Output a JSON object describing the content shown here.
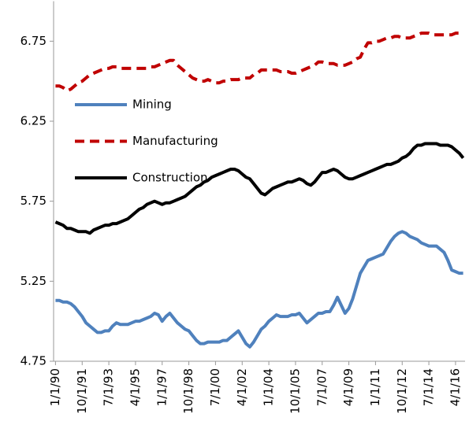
{
  "chart_data": {
    "type": "line",
    "categories": [
      "1/1/90",
      null,
      null,
      null,
      null,
      null,
      null,
      "10/1/91",
      null,
      null,
      null,
      null,
      null,
      null,
      "7/1/93",
      null,
      null,
      null,
      null,
      null,
      null,
      "4/1/95",
      null,
      null,
      null,
      null,
      null,
      null,
      "1/1/97",
      null,
      null,
      null,
      null,
      null,
      null,
      "10/1/98",
      null,
      null,
      null,
      null,
      null,
      null,
      "7/1/00",
      null,
      null,
      null,
      null,
      null,
      null,
      "4/1/02",
      null,
      null,
      null,
      null,
      null,
      null,
      "1/1/04",
      null,
      null,
      null,
      null,
      null,
      null,
      "10/1/05",
      null,
      null,
      null,
      null,
      null,
      null,
      "7/1/07",
      null,
      null,
      null,
      null,
      null,
      null,
      "4/1/09",
      null,
      null,
      null,
      null,
      null,
      null,
      "1/1/11",
      null,
      null,
      null,
      null,
      null,
      null,
      "10/1/12",
      null,
      null,
      null,
      null,
      null,
      null,
      "7/1/14",
      null,
      null,
      null,
      null,
      null,
      null,
      "4/1/16",
      null,
      null
    ],
    "series": [
      {
        "name": "Mining",
        "color": "#4f81bd",
        "dash": false,
        "values": [
          5.13,
          5.13,
          5.12,
          5.12,
          5.11,
          5.09,
          5.06,
          5.03,
          4.99,
          4.97,
          4.95,
          4.93,
          4.93,
          4.94,
          4.94,
          4.97,
          4.99,
          4.98,
          4.98,
          4.98,
          4.99,
          5.0,
          5.0,
          5.01,
          5.02,
          5.03,
          5.05,
          5.04,
          5.0,
          5.03,
          5.05,
          5.02,
          4.99,
          4.97,
          4.95,
          4.94,
          4.91,
          4.88,
          4.86,
          4.86,
          4.87,
          4.87,
          4.87,
          4.87,
          4.88,
          4.88,
          4.9,
          4.92,
          4.94,
          4.9,
          4.86,
          4.84,
          4.87,
          4.91,
          4.95,
          4.97,
          5.0,
          5.02,
          5.04,
          5.03,
          5.03,
          5.03,
          5.04,
          5.04,
          5.05,
          5.02,
          4.99,
          5.01,
          5.03,
          5.05,
          5.05,
          5.06,
          5.06,
          5.1,
          5.15,
          5.1,
          5.05,
          5.08,
          5.14,
          5.22,
          5.3,
          5.34,
          5.38,
          5.39,
          5.4,
          5.41,
          5.42,
          5.46,
          5.5,
          5.53,
          5.55,
          5.56,
          5.55,
          5.53,
          5.52,
          5.51,
          5.49,
          5.48,
          5.47,
          5.47,
          5.47,
          5.45,
          5.43,
          5.38,
          5.32,
          5.31,
          5.3,
          5.3
        ]
      },
      {
        "name": "Manufacturing",
        "color": "#c00000",
        "dash": true,
        "values": [
          6.47,
          6.47,
          6.46,
          6.44,
          6.45,
          6.47,
          6.49,
          6.5,
          6.52,
          6.54,
          6.55,
          6.56,
          6.57,
          6.58,
          6.58,
          6.59,
          6.59,
          6.58,
          6.58,
          6.58,
          6.58,
          6.58,
          6.58,
          6.58,
          6.58,
          6.59,
          6.59,
          6.6,
          6.61,
          6.62,
          6.63,
          6.63,
          6.6,
          6.58,
          6.56,
          6.54,
          6.52,
          6.51,
          6.5,
          6.5,
          6.51,
          6.5,
          6.49,
          6.49,
          6.5,
          6.5,
          6.51,
          6.51,
          6.51,
          6.52,
          6.52,
          6.52,
          6.54,
          6.55,
          6.57,
          6.57,
          6.57,
          6.57,
          6.57,
          6.56,
          6.56,
          6.56,
          6.55,
          6.55,
          6.56,
          6.57,
          6.58,
          6.59,
          6.6,
          6.62,
          6.62,
          6.61,
          6.61,
          6.61,
          6.6,
          6.6,
          6.6,
          6.61,
          6.62,
          6.64,
          6.65,
          6.7,
          6.74,
          6.74,
          6.75,
          6.75,
          6.76,
          6.77,
          6.77,
          6.78,
          6.78,
          6.77,
          6.77,
          6.77,
          6.78,
          6.79,
          6.8,
          6.8,
          6.8,
          6.79,
          6.79,
          6.79,
          6.79,
          6.79,
          6.79,
          6.8,
          6.8,
          6.81
        ]
      },
      {
        "name": "Construction",
        "color": "#000000",
        "dash": false,
        "values": [
          5.62,
          5.61,
          5.6,
          5.58,
          5.58,
          5.57,
          5.56,
          5.56,
          5.56,
          5.55,
          5.57,
          5.58,
          5.59,
          5.6,
          5.6,
          5.61,
          5.61,
          5.62,
          5.63,
          5.64,
          5.66,
          5.68,
          5.7,
          5.71,
          5.73,
          5.74,
          5.75,
          5.74,
          5.73,
          5.74,
          5.74,
          5.75,
          5.76,
          5.77,
          5.78,
          5.8,
          5.82,
          5.84,
          5.85,
          5.87,
          5.88,
          5.9,
          5.91,
          5.92,
          5.93,
          5.94,
          5.95,
          5.95,
          5.94,
          5.92,
          5.9,
          5.89,
          5.86,
          5.83,
          5.8,
          5.79,
          5.81,
          5.83,
          5.84,
          5.85,
          5.86,
          5.87,
          5.87,
          5.88,
          5.89,
          5.88,
          5.86,
          5.85,
          5.87,
          5.9,
          5.93,
          5.93,
          5.94,
          5.95,
          5.94,
          5.92,
          5.9,
          5.89,
          5.89,
          5.9,
          5.91,
          5.92,
          5.93,
          5.94,
          5.95,
          5.96,
          5.97,
          5.98,
          5.98,
          5.99,
          6.0,
          6.02,
          6.03,
          6.05,
          6.08,
          6.1,
          6.1,
          6.11,
          6.11,
          6.11,
          6.11,
          6.1,
          6.1,
          6.1,
          6.09,
          6.07,
          6.05,
          6.02
        ]
      }
    ],
    "ylim": [
      4.75,
      7.0
    ],
    "yticks": [
      4.75,
      5.25,
      5.75,
      6.25,
      6.75
    ],
    "grid": false,
    "legend": "upper left"
  }
}
